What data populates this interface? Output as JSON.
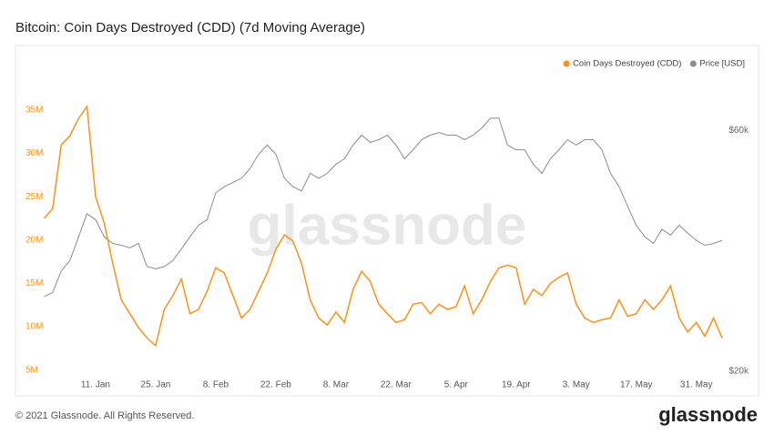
{
  "chart_data": {
    "type": "line",
    "title": "Bitcoin: Coin Days Destroyed (CDD) (7d Moving Average)",
    "watermark": "glassnode",
    "footer": "© 2021 Glassnode. All Rights Reserved.",
    "brand": "glassnode",
    "categories": [
      null,
      null,
      null,
      null,
      null,
      null,
      "11. Jan",
      null,
      null,
      null,
      null,
      null,
      null,
      "25. Jan",
      null,
      null,
      null,
      null,
      null,
      null,
      "8. Feb",
      null,
      null,
      null,
      null,
      null,
      null,
      "22. Feb",
      null,
      null,
      null,
      null,
      null,
      null,
      "8. Mar",
      null,
      null,
      null,
      null,
      null,
      null,
      "22. Mar",
      null,
      null,
      null,
      null,
      null,
      null,
      "5. Apr",
      null,
      null,
      null,
      null,
      null,
      null,
      "19. Apr",
      null,
      null,
      null,
      null,
      null,
      null,
      "3. May",
      null,
      null,
      null,
      null,
      null,
      null,
      "17. May",
      null,
      null,
      null,
      null,
      null,
      null,
      "31. May",
      null,
      null,
      null
    ],
    "series": [
      {
        "name": "Coin Days Destroyed (CDD)",
        "color": "#f7931a",
        "axis": "y",
        "values": [
          22.5,
          23.6,
          31,
          32,
          34,
          35.4,
          25,
          22,
          17.3,
          13.1,
          11.5,
          9.9,
          8.7,
          7.8,
          12,
          13.6,
          15.5,
          11.5,
          12,
          14.1,
          16.8,
          16.2,
          13.6,
          11,
          12,
          14.1,
          16.2,
          18.9,
          20.6,
          19.9,
          17.3,
          13.1,
          11,
          10.2,
          11.7,
          10.5,
          14.3,
          16.4,
          15.2,
          12.6,
          11.5,
          10.5,
          10.8,
          12.6,
          12.8,
          11.5,
          12.6,
          12,
          12.3,
          14.7,
          11.5,
          13.1,
          15.2,
          16.8,
          17.1,
          16.8,
          12.6,
          14.3,
          13.6,
          15,
          15.7,
          16.2,
          12.6,
          11,
          10.5,
          10.8,
          11,
          13.1,
          11.2,
          11.5,
          13.1,
          12,
          13.1,
          14.7,
          11,
          9.4,
          10.5,
          8.9,
          11,
          8.7
        ]
      },
      {
        "name": "Price [USD]",
        "color": "#8c8c8c",
        "axis": "y2",
        "values": [
          28.1,
          28.6,
          31.6,
          33.1,
          36.8,
          41,
          39.9,
          36.9,
          35.8,
          35.5,
          35.1,
          35.8,
          32.2,
          31.9,
          32.2,
          33.1,
          34.9,
          36.9,
          38.9,
          39.9,
          45.1,
          46.4,
          47.3,
          48.2,
          50.4,
          53.8,
          56.1,
          53.8,
          48.2,
          46.4,
          45.5,
          49.3,
          48.2,
          49.3,
          51.4,
          52.7,
          56.1,
          58.7,
          56.8,
          57.5,
          58.7,
          56.1,
          52.7,
          54.9,
          57.5,
          58.7,
          59.4,
          58.7,
          58.7,
          57.5,
          58.7,
          60.6,
          63.4,
          63.4,
          56.1,
          54.9,
          54.9,
          51.4,
          49.3,
          52.7,
          54.9,
          57.5,
          56.1,
          57.5,
          57.5,
          54.9,
          49.3,
          46.4,
          42.4,
          38.9,
          36.9,
          35.8,
          38.2,
          37.2,
          38.9,
          37.5,
          36.3,
          35.5,
          35.8,
          36.3
        ]
      }
    ],
    "ylim": [
      3.6,
      37.2
    ],
    "yticks": [
      {
        "value": 5,
        "label": "5M"
      },
      {
        "value": 10,
        "label": "10M"
      },
      {
        "value": 15,
        "label": "15M"
      },
      {
        "value": 20,
        "label": "20M"
      },
      {
        "value": 25,
        "label": "25M"
      },
      {
        "value": 30,
        "label": "30M"
      },
      {
        "value": 35,
        "label": "35M"
      }
    ],
    "y2lim": [
      19,
      71.8
    ],
    "y2ticks": [
      {
        "value": 20,
        "label": "$20k"
      },
      {
        "value": 60,
        "label": "$60k"
      }
    ],
    "y2log": true,
    "legend": "top-right",
    "grid": false
  }
}
